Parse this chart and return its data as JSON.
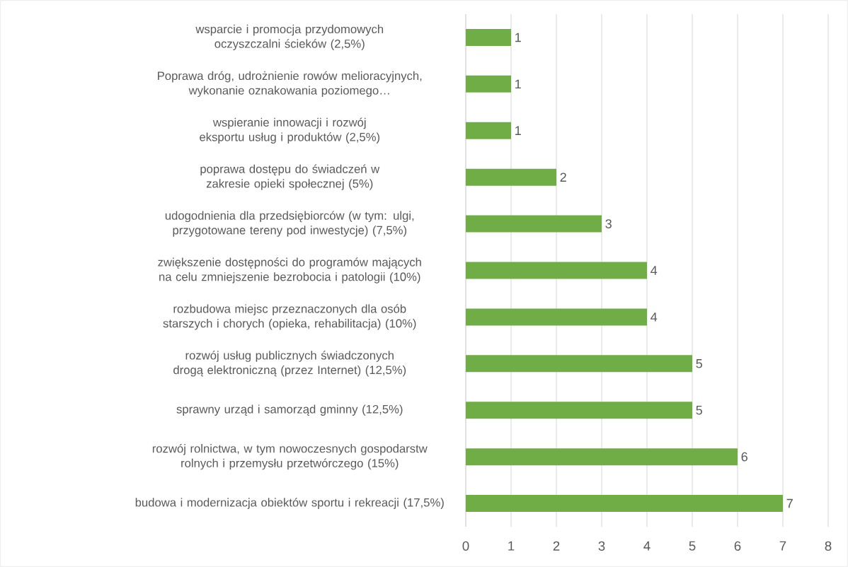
{
  "chart_data": {
    "type": "bar",
    "orientation": "horizontal",
    "categories": [
      "wsparcie i promocja przydomowych oczyszczalni ścieków (2,5%)",
      "Poprawa dróg, udrożnienie rowów melioracyjnych, wykonanie oznakowania poziomego…",
      "wspieranie innowacji i rozwój eksportu usług i produktów (2,5%)",
      "poprawa dostępu do świadczeń w zakresie opieki społecznej (5%)",
      "udogodnienia dla przedsiębiorców (w tym: ulgi, przygotowane tereny pod inwestycje) (7,5%)",
      "zwiększenie dostępności do programów mających na celu zmniejszenie bezrobocia i patologii (10%)",
      "rozbudowa miejsc przeznaczonych dla osób starszych i chorych (opieka, rehabilitacja) (10%)",
      "rozwój usług publicznych świadczonych drogą elektroniczną (przez Internet) (12,5%)",
      "sprawny urząd i samorząd gminny (12,5%)",
      "rozwój rolnictwa, w tym nowoczesnych gospodarstw rolnych i przemysłu przetwórczego (15%)",
      "budowa i modernizacja obiektów sportu i rekreacji (17,5%)"
    ],
    "values": [
      1,
      1,
      1,
      2,
      3,
      4,
      4,
      5,
      5,
      6,
      7
    ],
    "color": "#70ad47",
    "xlim": [
      0,
      8
    ],
    "xticks": [
      0,
      1,
      2,
      3,
      4,
      5,
      6,
      7,
      8
    ],
    "grid": "x",
    "data_labels": true
  }
}
